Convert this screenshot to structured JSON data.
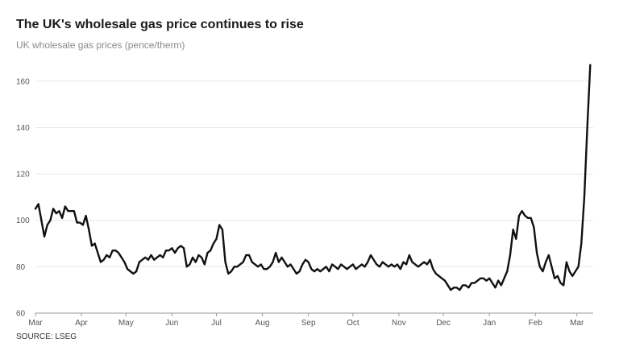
{
  "chart_data": {
    "type": "line",
    "title": "The UK's wholesale gas price continues to rise",
    "subtitle": "UK wholesale gas prices (pence/therm)",
    "source": "SOURCE: LSEG",
    "xlabel": "",
    "ylabel": "",
    "ylim": [
      60,
      170
    ],
    "yticks": [
      60,
      80,
      100,
      120,
      140,
      160
    ],
    "xlim": [
      "2024-03-01",
      "2025-03-12"
    ],
    "xticks": [
      {
        "date": "2024-03-01",
        "label": "Mar"
      },
      {
        "date": "2024-04-01",
        "label": "Apr"
      },
      {
        "date": "2024-05-01",
        "label": "May"
      },
      {
        "date": "2024-06-01",
        "label": "Jun"
      },
      {
        "date": "2024-07-01",
        "label": "Jul"
      },
      {
        "date": "2024-08-01",
        "label": "Aug"
      },
      {
        "date": "2024-09-01",
        "label": "Sep"
      },
      {
        "date": "2024-10-01",
        "label": "Oct"
      },
      {
        "date": "2024-11-01",
        "label": "Nov"
      },
      {
        "date": "2024-12-01",
        "label": "Dec"
      },
      {
        "date": "2025-01-01",
        "label": "Jan"
      },
      {
        "date": "2025-02-01",
        "label": "Feb"
      },
      {
        "date": "2025-03-01",
        "label": "Mar"
      }
    ],
    "grid": true,
    "series": [
      {
        "name": "",
        "color": "#111111",
        "points": [
          [
            "2024-03-01",
            105
          ],
          [
            "2024-03-03",
            107
          ],
          [
            "2024-03-05",
            100
          ],
          [
            "2024-03-07",
            93
          ],
          [
            "2024-03-09",
            98
          ],
          [
            "2024-03-11",
            100
          ],
          [
            "2024-03-13",
            105
          ],
          [
            "2024-03-15",
            103
          ],
          [
            "2024-03-17",
            104
          ],
          [
            "2024-03-19",
            101
          ],
          [
            "2024-03-21",
            106
          ],
          [
            "2024-03-23",
            104
          ],
          [
            "2024-03-25",
            104
          ],
          [
            "2024-03-27",
            104
          ],
          [
            "2024-03-29",
            99
          ],
          [
            "2024-03-31",
            99
          ],
          [
            "2024-04-02",
            98
          ],
          [
            "2024-04-04",
            102
          ],
          [
            "2024-04-06",
            96
          ],
          [
            "2024-04-08",
            89
          ],
          [
            "2024-04-10",
            90
          ],
          [
            "2024-04-12",
            86
          ],
          [
            "2024-04-14",
            82
          ],
          [
            "2024-04-16",
            83
          ],
          [
            "2024-04-18",
            85
          ],
          [
            "2024-04-20",
            84
          ],
          [
            "2024-04-22",
            87
          ],
          [
            "2024-04-24",
            87
          ],
          [
            "2024-04-26",
            86
          ],
          [
            "2024-04-28",
            84
          ],
          [
            "2024-04-30",
            82
          ],
          [
            "2024-05-02",
            79
          ],
          [
            "2024-05-04",
            78
          ],
          [
            "2024-05-06",
            77
          ],
          [
            "2024-05-08",
            78
          ],
          [
            "2024-05-10",
            82
          ],
          [
            "2024-05-12",
            83
          ],
          [
            "2024-05-14",
            84
          ],
          [
            "2024-05-16",
            83
          ],
          [
            "2024-05-18",
            85
          ],
          [
            "2024-05-20",
            83
          ],
          [
            "2024-05-22",
            84
          ],
          [
            "2024-05-24",
            85
          ],
          [
            "2024-05-26",
            84
          ],
          [
            "2024-05-28",
            87
          ],
          [
            "2024-05-30",
            87
          ],
          [
            "2024-06-01",
            88
          ],
          [
            "2024-06-03",
            86
          ],
          [
            "2024-06-05",
            88
          ],
          [
            "2024-06-07",
            89
          ],
          [
            "2024-06-09",
            88
          ],
          [
            "2024-06-11",
            80
          ],
          [
            "2024-06-13",
            81
          ],
          [
            "2024-06-15",
            84
          ],
          [
            "2024-06-17",
            82
          ],
          [
            "2024-06-19",
            85
          ],
          [
            "2024-06-21",
            84
          ],
          [
            "2024-06-23",
            81
          ],
          [
            "2024-06-25",
            86
          ],
          [
            "2024-06-27",
            87
          ],
          [
            "2024-06-29",
            90
          ],
          [
            "2024-07-01",
            92
          ],
          [
            "2024-07-03",
            98
          ],
          [
            "2024-07-05",
            96
          ],
          [
            "2024-07-07",
            82
          ],
          [
            "2024-07-09",
            77
          ],
          [
            "2024-07-11",
            78
          ],
          [
            "2024-07-13",
            80
          ],
          [
            "2024-07-15",
            80
          ],
          [
            "2024-07-17",
            81
          ],
          [
            "2024-07-19",
            82
          ],
          [
            "2024-07-21",
            85
          ],
          [
            "2024-07-23",
            85
          ],
          [
            "2024-07-25",
            82
          ],
          [
            "2024-07-27",
            81
          ],
          [
            "2024-07-29",
            80
          ],
          [
            "2024-07-31",
            81
          ],
          [
            "2024-08-02",
            79
          ],
          [
            "2024-08-04",
            79
          ],
          [
            "2024-08-06",
            80
          ],
          [
            "2024-08-08",
            82
          ],
          [
            "2024-08-10",
            86
          ],
          [
            "2024-08-12",
            82
          ],
          [
            "2024-08-14",
            84
          ],
          [
            "2024-08-16",
            82
          ],
          [
            "2024-08-18",
            80
          ],
          [
            "2024-08-20",
            81
          ],
          [
            "2024-08-22",
            79
          ],
          [
            "2024-08-24",
            77
          ],
          [
            "2024-08-26",
            78
          ],
          [
            "2024-08-28",
            81
          ],
          [
            "2024-08-30",
            83
          ],
          [
            "2024-09-01",
            82
          ],
          [
            "2024-09-03",
            79
          ],
          [
            "2024-09-05",
            78
          ],
          [
            "2024-09-07",
            79
          ],
          [
            "2024-09-09",
            78
          ],
          [
            "2024-09-11",
            79
          ],
          [
            "2024-09-13",
            80
          ],
          [
            "2024-09-15",
            78
          ],
          [
            "2024-09-17",
            81
          ],
          [
            "2024-09-19",
            80
          ],
          [
            "2024-09-21",
            79
          ],
          [
            "2024-09-23",
            81
          ],
          [
            "2024-09-25",
            80
          ],
          [
            "2024-09-27",
            79
          ],
          [
            "2024-09-29",
            80
          ],
          [
            "2024-10-01",
            81
          ],
          [
            "2024-10-03",
            79
          ],
          [
            "2024-10-05",
            80
          ],
          [
            "2024-10-07",
            81
          ],
          [
            "2024-10-09",
            80
          ],
          [
            "2024-10-11",
            82
          ],
          [
            "2024-10-13",
            85
          ],
          [
            "2024-10-15",
            83
          ],
          [
            "2024-10-17",
            81
          ],
          [
            "2024-10-19",
            80
          ],
          [
            "2024-10-21",
            82
          ],
          [
            "2024-10-23",
            81
          ],
          [
            "2024-10-25",
            80
          ],
          [
            "2024-10-27",
            81
          ],
          [
            "2024-10-29",
            80
          ],
          [
            "2024-10-31",
            81
          ],
          [
            "2024-11-02",
            79
          ],
          [
            "2024-11-04",
            82
          ],
          [
            "2024-11-06",
            81
          ],
          [
            "2024-11-08",
            85
          ],
          [
            "2024-11-10",
            82
          ],
          [
            "2024-11-12",
            81
          ],
          [
            "2024-11-14",
            80
          ],
          [
            "2024-11-16",
            81
          ],
          [
            "2024-11-18",
            82
          ],
          [
            "2024-11-20",
            81
          ],
          [
            "2024-11-22",
            83
          ],
          [
            "2024-11-24",
            79
          ],
          [
            "2024-11-26",
            77
          ],
          [
            "2024-11-28",
            76
          ],
          [
            "2024-11-30",
            75
          ],
          [
            "2024-12-02",
            74
          ],
          [
            "2024-12-04",
            72
          ],
          [
            "2024-12-06",
            70
          ],
          [
            "2024-12-08",
            71
          ],
          [
            "2024-12-10",
            71
          ],
          [
            "2024-12-12",
            70
          ],
          [
            "2024-12-14",
            72
          ],
          [
            "2024-12-16",
            72
          ],
          [
            "2024-12-18",
            71
          ],
          [
            "2024-12-20",
            73
          ],
          [
            "2024-12-22",
            73
          ],
          [
            "2024-12-24",
            74
          ],
          [
            "2024-12-26",
            75
          ],
          [
            "2024-12-28",
            75
          ],
          [
            "2024-12-30",
            74
          ],
          [
            "2025-01-01",
            75
          ],
          [
            "2025-01-03",
            73
          ],
          [
            "2025-01-05",
            71
          ],
          [
            "2025-01-07",
            74
          ],
          [
            "2025-01-09",
            72
          ],
          [
            "2025-01-11",
            75
          ],
          [
            "2025-01-13",
            78
          ],
          [
            "2025-01-15",
            85
          ],
          [
            "2025-01-17",
            96
          ],
          [
            "2025-01-19",
            92
          ],
          [
            "2025-01-21",
            102
          ],
          [
            "2025-01-23",
            104
          ],
          [
            "2025-01-25",
            102
          ],
          [
            "2025-01-27",
            101
          ],
          [
            "2025-01-29",
            101
          ],
          [
            "2025-01-31",
            97
          ],
          [
            "2025-02-02",
            86
          ],
          [
            "2025-02-04",
            80
          ],
          [
            "2025-02-06",
            78
          ],
          [
            "2025-02-08",
            82
          ],
          [
            "2025-02-10",
            85
          ],
          [
            "2025-02-12",
            80
          ],
          [
            "2025-02-14",
            75
          ],
          [
            "2025-02-16",
            76
          ],
          [
            "2025-02-18",
            73
          ],
          [
            "2025-02-20",
            72
          ],
          [
            "2025-02-22",
            82
          ],
          [
            "2025-02-24",
            78
          ],
          [
            "2025-02-26",
            76
          ],
          [
            "2025-02-28",
            78
          ],
          [
            "2025-03-02",
            80
          ],
          [
            "2025-03-04",
            90
          ],
          [
            "2025-03-06",
            110
          ],
          [
            "2025-03-08",
            140
          ],
          [
            "2025-03-10",
            167
          ]
        ]
      }
    ]
  }
}
